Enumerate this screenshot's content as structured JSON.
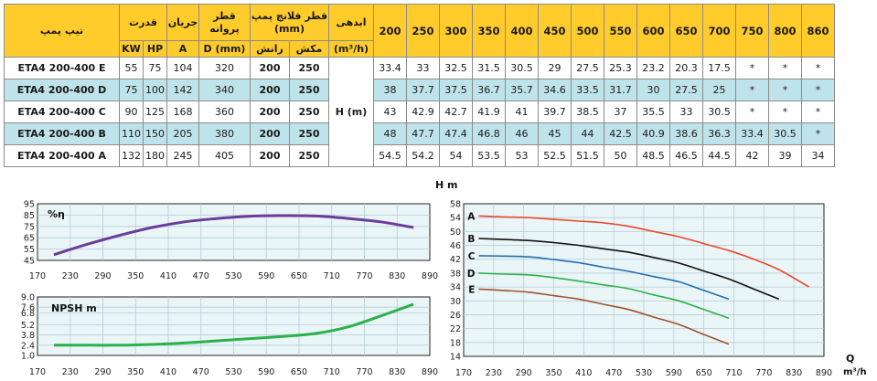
{
  "table": {
    "header_top": {
      "model": "تیپ پمپ",
      "power": "قدرت",
      "current": "جریان",
      "impeller": "قطر پروانه",
      "flange": "قطر فلانچ پمپ (mm)",
      "head": "ابدهی",
      "flows": [
        "200",
        "250",
        "300",
        "350",
        "400",
        "450",
        "500",
        "550",
        "600",
        "650",
        "700",
        "750",
        "800",
        "860"
      ]
    },
    "header_sub": {
      "kw": "KW",
      "hp": "HP",
      "amp": "A",
      "dmm": "D (mm)",
      "discharge": "رانش",
      "suction": "مکش",
      "unit": "(m³/h)"
    },
    "head_label": "H (m)",
    "rows": [
      {
        "model": "ETA4 200-400 E",
        "kw": "55",
        "hp": "75",
        "a": "104",
        "d": "320",
        "dis": "200",
        "suc": "250",
        "heads": [
          "33.4",
          "33",
          "32.5",
          "31.5",
          "30.5",
          "29",
          "27.5",
          "25.3",
          "23.2",
          "20.3",
          "17.5",
          "*",
          "*",
          "*"
        ]
      },
      {
        "model": "ETA4 200-400 D",
        "kw": "75",
        "hp": "100",
        "a": "142",
        "d": "340",
        "dis": "200",
        "suc": "250",
        "heads": [
          "38",
          "37.7",
          "37.5",
          "36.7",
          "35.7",
          "34.6",
          "33.5",
          "31.7",
          "30",
          "27.5",
          "25",
          "*",
          "*",
          "*"
        ]
      },
      {
        "model": "ETA4 200-400 C",
        "kw": "90",
        "hp": "125",
        "a": "168",
        "d": "360",
        "dis": "200",
        "suc": "250",
        "heads": [
          "43",
          "42.9",
          "42.7",
          "41.9",
          "41",
          "39.7",
          "38.5",
          "37",
          "35.5",
          "33",
          "30.5",
          "*",
          "*",
          "*"
        ]
      },
      {
        "model": "ETA4 200-400 B",
        "kw": "110",
        "hp": "150",
        "a": "205",
        "d": "380",
        "dis": "200",
        "suc": "250",
        "heads": [
          "48",
          "47.7",
          "47.4",
          "46.8",
          "46",
          "45",
          "44",
          "42.5",
          "40.9",
          "38.6",
          "36.3",
          "33.4",
          "30.5",
          "*"
        ]
      },
      {
        "model": "ETA4 200-400 A",
        "kw": "132",
        "hp": "180",
        "a": "245",
        "d": "405",
        "dis": "200",
        "suc": "250",
        "heads": [
          "54.5",
          "54.2",
          "54",
          "53.5",
          "53",
          "52.5",
          "51.5",
          "50",
          "48.5",
          "46.5",
          "44.5",
          "42",
          "39",
          "34"
        ]
      }
    ]
  },
  "chart_data": [
    {
      "type": "line",
      "label": "%η",
      "x_ticks": [
        "170",
        "230",
        "290",
        "350",
        "410",
        "470",
        "530",
        "590",
        "650",
        "710",
        "770",
        "830",
        "890"
      ],
      "y_ticks": [
        "45",
        "55",
        "65",
        "75",
        "85",
        "95"
      ],
      "xlim": [
        170,
        890
      ],
      "ylim": [
        45,
        95
      ],
      "series": [
        {
          "color": "#6a3d9a",
          "x": [
            200,
            260,
            320,
            380,
            440,
            500,
            560,
            620,
            680,
            740,
            800,
            860
          ],
          "y": [
            50,
            59,
            67,
            74,
            79,
            82,
            84,
            84.5,
            84.2,
            82,
            79,
            74
          ]
        }
      ]
    },
    {
      "type": "line",
      "label": "NPSH m",
      "x_ticks": [
        "170",
        "230",
        "290",
        "350",
        "410",
        "470",
        "530",
        "590",
        "650",
        "710",
        "770",
        "830",
        "890"
      ],
      "y_ticks": [
        "1.0",
        "2.4",
        "3.8",
        "5.2",
        "6.8",
        "7.6",
        "9.0"
      ],
      "xlim": [
        170,
        890
      ],
      "ylim": [
        1,
        9
      ],
      "series": [
        {
          "color": "#2ab24a",
          "x": [
            200,
            260,
            320,
            380,
            440,
            500,
            560,
            620,
            680,
            740,
            800,
            860
          ],
          "y": [
            2.4,
            2.4,
            2.4,
            2.5,
            2.7,
            3.0,
            3.3,
            3.6,
            4.0,
            4.9,
            6.4,
            8.0
          ]
        }
      ]
    },
    {
      "type": "line",
      "label": "H m",
      "xlabel": "Q",
      "xunit": "m³/h",
      "x_ticks": [
        "170",
        "230",
        "290",
        "350",
        "410",
        "470",
        "530",
        "590",
        "650",
        "710",
        "770",
        "830",
        "890"
      ],
      "y_ticks": [
        "14",
        "18",
        "22",
        "26",
        "30",
        "34",
        "38",
        "42",
        "46",
        "50",
        "54",
        "58"
      ],
      "xlim": [
        170,
        890
      ],
      "ylim": [
        14,
        58
      ],
      "series": [
        {
          "name": "A",
          "color": "#e84a2a",
          "x": [
            200,
            250,
            300,
            350,
            400,
            450,
            500,
            550,
            600,
            650,
            700,
            750,
            800,
            860
          ],
          "y": [
            54.5,
            54.2,
            54,
            53.5,
            53,
            52.5,
            51.5,
            50,
            48.5,
            46.5,
            44.5,
            42,
            39,
            34
          ]
        },
        {
          "name": "B",
          "color": "#111111",
          "x": [
            200,
            250,
            300,
            350,
            400,
            450,
            500,
            550,
            600,
            650,
            700,
            750,
            800
          ],
          "y": [
            48,
            47.7,
            47.4,
            46.8,
            46,
            45,
            44,
            42.5,
            40.9,
            38.6,
            36.3,
            33.4,
            30.5
          ]
        },
        {
          "name": "C",
          "color": "#1f6fb0",
          "x": [
            200,
            250,
            300,
            350,
            400,
            450,
            500,
            550,
            600,
            650,
            700
          ],
          "y": [
            43,
            42.9,
            42.7,
            41.9,
            41,
            39.7,
            38.5,
            37,
            35.5,
            33,
            30.5
          ]
        },
        {
          "name": "D",
          "color": "#2ab24a",
          "x": [
            200,
            250,
            300,
            350,
            400,
            450,
            500,
            550,
            600,
            650,
            700
          ],
          "y": [
            38,
            37.7,
            37.5,
            36.7,
            35.7,
            34.6,
            33.5,
            31.7,
            30,
            27.5,
            25
          ]
        },
        {
          "name": "E",
          "color": "#a0522d",
          "x": [
            200,
            250,
            300,
            350,
            400,
            450,
            500,
            550,
            600,
            650,
            700
          ],
          "y": [
            33.4,
            33,
            32.5,
            31.5,
            30.5,
            29,
            27.5,
            25.3,
            23.2,
            20.3,
            17.5
          ]
        }
      ]
    }
  ]
}
